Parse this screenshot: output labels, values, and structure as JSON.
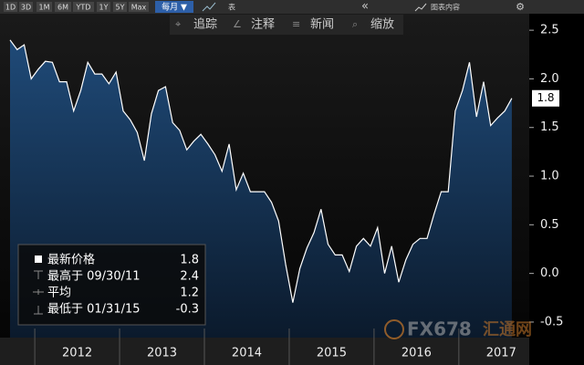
{
  "toolbar": {
    "ranges": [
      "1D",
      "3D",
      "1M",
      "6M",
      "YTD",
      "1Y",
      "5Y",
      "Max"
    ],
    "period": "每月 ▼",
    "table": "表",
    "collapse": "«",
    "content": "图表内容",
    "tools": [
      "追踪",
      "注释",
      "新闻",
      "缩放"
    ]
  },
  "watermark": {
    "brand": "FX678",
    "site": "汇通网"
  },
  "chart_data": {
    "type": "area",
    "x": [
      2011.708,
      2011.792,
      2011.875,
      2011.958,
      2012.042,
      2012.125,
      2012.208,
      2012.292,
      2012.375,
      2012.458,
      2012.542,
      2012.625,
      2012.708,
      2012.792,
      2012.875,
      2012.958,
      2013.042,
      2013.125,
      2013.208,
      2013.292,
      2013.375,
      2013.458,
      2013.542,
      2013.625,
      2013.708,
      2013.792,
      2013.875,
      2013.958,
      2014.042,
      2014.125,
      2014.208,
      2014.292,
      2014.375,
      2014.458,
      2014.542,
      2014.625,
      2014.708,
      2014.792,
      2014.875,
      2014.958,
      2015.042,
      2015.125,
      2015.208,
      2015.292,
      2015.375,
      2015.458,
      2015.542,
      2015.625,
      2015.708,
      2015.792,
      2015.875,
      2015.958,
      2016.042,
      2016.125,
      2016.208,
      2016.292,
      2016.375,
      2016.458,
      2016.542,
      2016.625,
      2016.708,
      2016.792,
      2016.875,
      2016.958,
      2017.042,
      2017.125,
      2017.208,
      2017.292,
      2017.375,
      2017.458,
      2017.542,
      2017.625
    ],
    "series": [
      {
        "color": "#ffffff",
        "fill": "#1d4470",
        "values": [
          2.4,
          2.3,
          2.35,
          2.0,
          2.1,
          2.18,
          2.17,
          1.97,
          1.97,
          1.67,
          1.88,
          2.17,
          2.05,
          2.05,
          1.95,
          2.07,
          1.67,
          1.58,
          1.45,
          1.16,
          1.64,
          1.88,
          1.92,
          1.55,
          1.47,
          1.27,
          1.36,
          1.43,
          1.33,
          1.22,
          1.05,
          1.33,
          0.86,
          1.03,
          0.84,
          0.84,
          0.84,
          0.73,
          0.54,
          0.09,
          -0.3,
          0.05,
          0.26,
          0.42,
          0.66,
          0.3,
          0.19,
          0.19,
          0.02,
          0.28,
          0.36,
          0.28,
          0.47,
          0,
          0.28,
          -0.09,
          0.14,
          0.3,
          0.36,
          0.36,
          0.61,
          0.84,
          0.84,
          1.67,
          1.88,
          2.17,
          1.61,
          1.97,
          1.52,
          1.6,
          1.67,
          1.8
        ]
      }
    ],
    "xlim": [
      2011.59,
      2017.83
    ],
    "xticks": [
      2012,
      2013,
      2014,
      2015,
      2016,
      2017
    ],
    "ylim": [
      -0.66,
      2.67
    ],
    "yticks": [
      -0.5,
      {
        "value": 0,
        "label": "0.0"
      },
      0.5,
      {
        "value": 1,
        "label": "1.0"
      },
      1.5,
      {
        "value": 2,
        "label": "2.0"
      },
      2.5
    ],
    "stats": [
      {
        "label": "最新价格",
        "value": 1.8
      },
      {
        "label": "最高于 09/30/11",
        "value": 2.4
      },
      {
        "label": "平均",
        "value": 1.2
      },
      {
        "label": "最低于 01/31/15",
        "value": -0.3
      }
    ]
  }
}
